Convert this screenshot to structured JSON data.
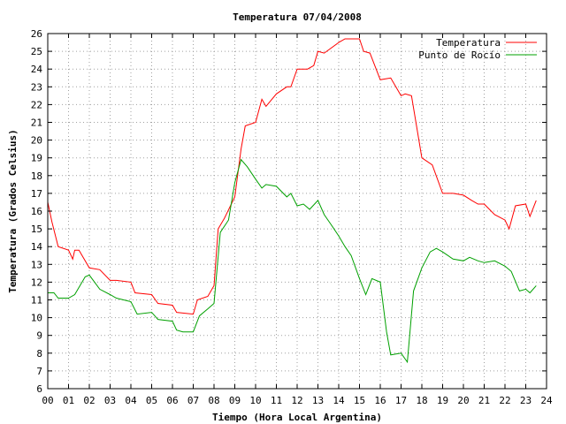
{
  "chart_data": {
    "type": "line",
    "title": "Temperatura 07/04/2008",
    "xlabel": "Tiempo (Hora Local Argentina)",
    "ylabel": "Temperatura (Grados Celsius)",
    "xlim": [
      0,
      24
    ],
    "ylim": [
      6,
      26
    ],
    "x_ticks": [
      "00",
      "01",
      "02",
      "03",
      "04",
      "05",
      "06",
      "07",
      "08",
      "09",
      "10",
      "11",
      "12",
      "13",
      "14",
      "15",
      "16",
      "17",
      "18",
      "19",
      "20",
      "21",
      "22",
      "23",
      "24"
    ],
    "y_ticks": [
      "6",
      "7",
      "8",
      "9",
      "10",
      "11",
      "12",
      "13",
      "14",
      "15",
      "16",
      "17",
      "18",
      "19",
      "20",
      "21",
      "22",
      "23",
      "24",
      "25",
      "26"
    ],
    "grid": true,
    "legend_position": "top-right",
    "series": [
      {
        "name": "Temperatura",
        "color": "#ff0000",
        "x": [
          0,
          0.2,
          0.5,
          1,
          1.2,
          1.3,
          1.5,
          2,
          2.5,
          3,
          3.3,
          4,
          4.2,
          5,
          5.3,
          6,
          6.2,
          7,
          7.2,
          7.7,
          8,
          8.2,
          8.5,
          9,
          9.3,
          9.5,
          10,
          10.3,
          10.5,
          11,
          11.5,
          11.7,
          12,
          12.5,
          12.8,
          13,
          13.3,
          14,
          14.3,
          15,
          15.2,
          15.5,
          16,
          16.5,
          17,
          17.2,
          17.5,
          18,
          18.5,
          19,
          19.5,
          20,
          20.4,
          20.7,
          21,
          21.5,
          22,
          22.2,
          22.5,
          23,
          23.2,
          23.5
        ],
        "y": [
          16.5,
          15.4,
          14,
          13.8,
          13.3,
          13.8,
          13.8,
          12.8,
          12.7,
          12.1,
          12.1,
          12,
          11.4,
          11.3,
          10.8,
          10.7,
          10.3,
          10.2,
          11,
          11.2,
          11.8,
          15,
          15.6,
          16.8,
          19.5,
          20.8,
          21,
          22.3,
          21.9,
          22.6,
          23,
          23,
          24,
          24,
          24.2,
          25,
          24.9,
          25.5,
          25.7,
          25.7,
          25,
          24.9,
          23.4,
          23.5,
          22.5,
          22.6,
          22.5,
          19,
          18.6,
          17,
          17,
          16.9,
          16.6,
          16.4,
          16.4,
          15.8,
          15.5,
          15,
          16.3,
          16.4,
          15.7,
          16.6
        ]
      },
      {
        "name": "Punto de Rocío",
        "color": "#00a000",
        "x": [
          0,
          0.3,
          0.5,
          1,
          1.3,
          1.8,
          2,
          2.5,
          3,
          3.3,
          4,
          4.3,
          5,
          5.3,
          6,
          6.2,
          6.5,
          7,
          7.3,
          7.7,
          8,
          8.3,
          8.7,
          9,
          9.3,
          9.6,
          10,
          10.3,
          10.5,
          11,
          11.5,
          11.7,
          12,
          12.3,
          12.6,
          13,
          13.3,
          13.6,
          14,
          14.3,
          14.6,
          15,
          15.3,
          15.6,
          16,
          16.3,
          16.5,
          17,
          17.3,
          17.6,
          18,
          18.4,
          18.7,
          19,
          19.5,
          20,
          20.3,
          20.7,
          21,
          21.5,
          22,
          22.3,
          22.7,
          23,
          23.2,
          23.5
        ],
        "y": [
          11.4,
          11.4,
          11.1,
          11.1,
          11.3,
          12.3,
          12.4,
          11.6,
          11.3,
          11.1,
          10.9,
          10.2,
          10.3,
          9.9,
          9.8,
          9.3,
          9.2,
          9.2,
          10.1,
          10.5,
          10.8,
          14.8,
          15.5,
          17.6,
          18.9,
          18.5,
          17.8,
          17.3,
          17.5,
          17.4,
          16.8,
          17,
          16.3,
          16.4,
          16.1,
          16.6,
          15.8,
          15.3,
          14.6,
          14,
          13.5,
          12.2,
          11.3,
          12.2,
          12,
          9.2,
          7.9,
          8,
          7.5,
          11.5,
          12.8,
          13.7,
          13.9,
          13.7,
          13.3,
          13.2,
          13.4,
          13.2,
          13.1,
          13.2,
          12.9,
          12.6,
          11.5,
          11.6,
          11.4,
          11.8
        ]
      }
    ]
  }
}
